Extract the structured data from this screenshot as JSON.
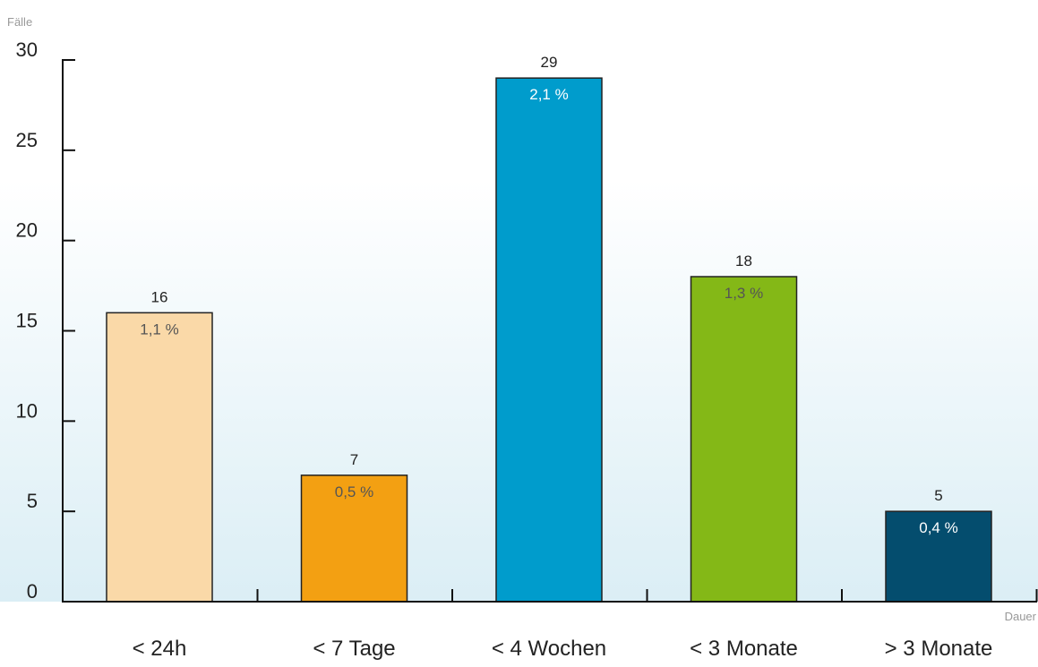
{
  "chart_data": {
    "type": "bar",
    "ylabel": "Fälle",
    "xlabel": "Dauer",
    "ylim": [
      0,
      30
    ],
    "yticks": [
      0,
      5,
      10,
      15,
      20,
      25,
      30
    ],
    "grid": false,
    "categories": [
      "< 24h",
      "< 7 Tage",
      "< 4 Wochen",
      "< 3 Monate",
      "> 3 Monate"
    ],
    "values": [
      16,
      7,
      29,
      18,
      5
    ],
    "percent_labels": [
      "1,1 %",
      "0,5 %",
      "2,1 %",
      "1,3 %",
      "0,4 %"
    ],
    "bar_colors": [
      "#fad9a8",
      "#f3a012",
      "#009ccc",
      "#84b817",
      "#044d6e"
    ],
    "percent_label_colors": [
      "#555555",
      "#555555",
      "#ffffff",
      "#555555",
      "#ffffff"
    ]
  },
  "colors": {
    "background_top": "#ffffff",
    "background_bottom": "#dbeef5",
    "axis": "#111111",
    "text": "#222222",
    "axis_title": "#999999"
  }
}
